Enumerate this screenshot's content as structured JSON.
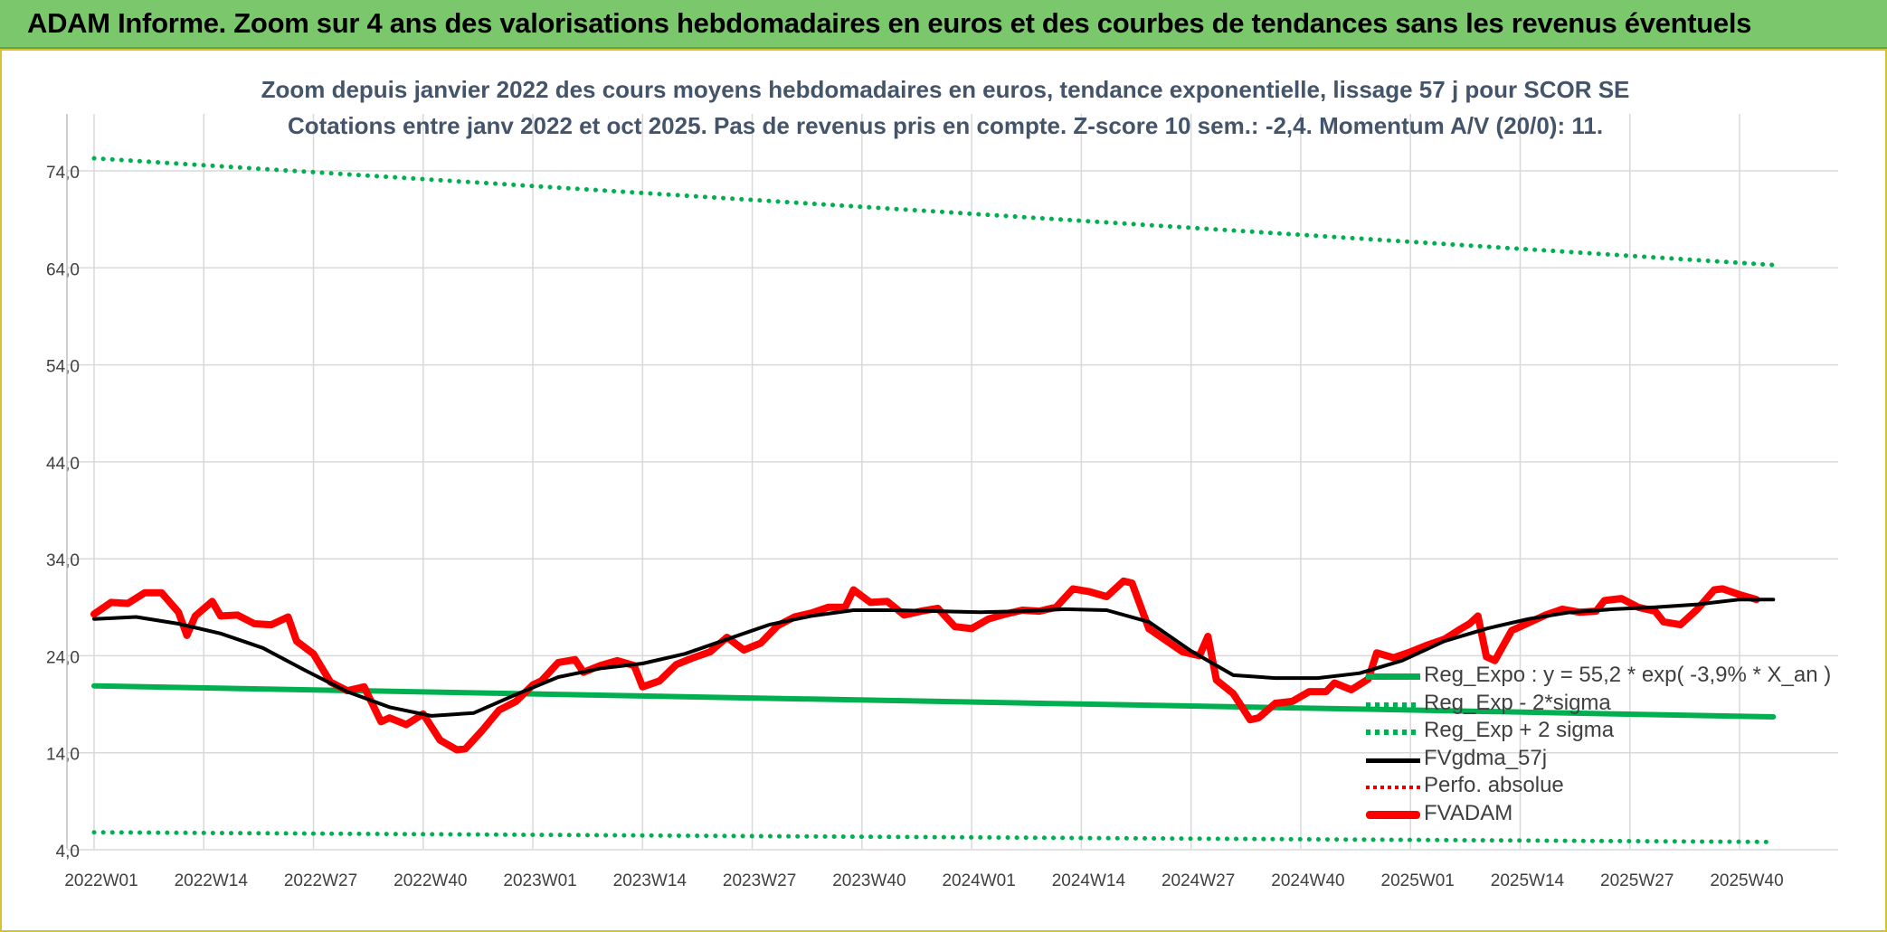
{
  "banner": {
    "title": "ADAM Informe. Zoom sur 4 ans des valorisations hebdomadaires en euros et des courbes de tendances sans les revenus éventuels"
  },
  "colors": {
    "banner_bg": "#7bc86c",
    "green": "#00b050",
    "black": "#000000",
    "red": "#ff0000",
    "dark_red": "#e00000",
    "title_text": "#44546a",
    "grid": "#d9d9d9"
  },
  "chart_data": {
    "type": "line",
    "title": "Zoom depuis janvier 2022 des cours moyens hebdomadaires en euros, tendance exponentielle, lissage 57 j pour SCOR SE",
    "subtitle": "Cotations entre janv 2022 et oct 2025. Pas de revenus pris en compte. Z-score 10 sem.: -2,4. Momentum A/V (20/0): 11.",
    "xlabel": "",
    "ylabel": "",
    "ylim": [
      4,
      74
    ],
    "x_range_weeks": [
      0,
      199
    ],
    "yticks": [
      "74,0",
      "64,0",
      "54,0",
      "44,0",
      "34,0",
      "24,0",
      "14,0",
      "4,0"
    ],
    "ytick_values": [
      74,
      64,
      54,
      44,
      34,
      24,
      14,
      4
    ],
    "xtick_labels": [
      "2022W01",
      "2022W14",
      "2022W27",
      "2022W40",
      "2023W01",
      "2023W14",
      "2023W27",
      "2023W40",
      "2024W01",
      "2024W14",
      "2024W27",
      "2024W40",
      "2025W01",
      "2025W14",
      "2025W27",
      "2025W40"
    ],
    "xtick_weeks": [
      0,
      13,
      26,
      39,
      52,
      65,
      78,
      91,
      104,
      117,
      130,
      143,
      156,
      169,
      182,
      195
    ],
    "grid": "vertical and horizontal",
    "legend_position": "bottom-right",
    "series": [
      {
        "name": "Reg_Expo : y = 55,2 * exp( -3,9% *  X_an )",
        "style": "solid",
        "color": "#00b050",
        "points": [
          [
            0,
            20.9
          ],
          [
            50,
            20.1
          ],
          [
            100,
            19.3
          ],
          [
            150,
            18.5
          ],
          [
            199,
            17.7
          ]
        ]
      },
      {
        "name": "Reg_Exp - 2*sigma",
        "style": "dotted",
        "color": "#00b050",
        "points": [
          [
            0,
            5.8
          ],
          [
            100,
            5.3
          ],
          [
            199,
            4.8
          ]
        ]
      },
      {
        "name": "Reg_Exp + 2 sigma",
        "style": "dotted",
        "color": "#00b050",
        "points": [
          [
            0,
            75.3
          ],
          [
            100,
            69.8
          ],
          [
            199,
            64.3
          ]
        ]
      },
      {
        "name": "FVgdma_57j",
        "style": "solid",
        "color": "#000000",
        "points": [
          [
            0,
            27.8
          ],
          [
            5,
            28.0
          ],
          [
            10,
            27.3
          ],
          [
            15,
            26.3
          ],
          [
            20,
            24.8
          ],
          [
            25,
            22.5
          ],
          [
            30,
            20.3
          ],
          [
            35,
            18.7
          ],
          [
            40,
            17.8
          ],
          [
            45,
            18.1
          ],
          [
            50,
            20.0
          ],
          [
            55,
            21.8
          ],
          [
            60,
            22.7
          ],
          [
            65,
            23.2
          ],
          [
            70,
            24.2
          ],
          [
            75,
            25.7
          ],
          [
            80,
            27.2
          ],
          [
            85,
            28.1
          ],
          [
            90,
            28.7
          ],
          [
            95,
            28.7
          ],
          [
            100,
            28.6
          ],
          [
            105,
            28.5
          ],
          [
            110,
            28.6
          ],
          [
            115,
            28.8
          ],
          [
            120,
            28.7
          ],
          [
            125,
            27.5
          ],
          [
            130,
            24.5
          ],
          [
            135,
            22.0
          ],
          [
            140,
            21.7
          ],
          [
            145,
            21.7
          ],
          [
            150,
            22.2
          ],
          [
            155,
            23.5
          ],
          [
            160,
            25.5
          ],
          [
            165,
            26.8
          ],
          [
            170,
            27.8
          ],
          [
            175,
            28.5
          ],
          [
            180,
            28.8
          ],
          [
            185,
            29.0
          ],
          [
            190,
            29.3
          ],
          [
            195,
            29.8
          ],
          [
            199,
            29.8
          ]
        ]
      },
      {
        "name": "Perfo. absolue",
        "style": "dotted",
        "color": "#e00000",
        "points": []
      },
      {
        "name": "FVADAM",
        "style": "solid-thick",
        "color": "#ff0000",
        "points": [
          [
            0,
            28.3
          ],
          [
            2,
            29.5
          ],
          [
            4,
            29.4
          ],
          [
            6,
            30.5
          ],
          [
            8,
            30.5
          ],
          [
            10,
            28.5
          ],
          [
            11,
            26.1
          ],
          [
            12,
            28.1
          ],
          [
            14,
            29.6
          ],
          [
            15,
            28.1
          ],
          [
            17,
            28.2
          ],
          [
            19,
            27.3
          ],
          [
            21,
            27.2
          ],
          [
            23,
            28.0
          ],
          [
            24,
            25.5
          ],
          [
            26,
            24.2
          ],
          [
            28,
            21.3
          ],
          [
            30,
            20.4
          ],
          [
            32,
            20.8
          ],
          [
            34,
            17.2
          ],
          [
            35,
            17.6
          ],
          [
            37,
            16.9
          ],
          [
            39,
            18.0
          ],
          [
            41,
            15.3
          ],
          [
            43,
            14.3
          ],
          [
            44,
            14.4
          ],
          [
            46,
            16.3
          ],
          [
            48,
            18.4
          ],
          [
            50,
            19.3
          ],
          [
            52,
            21.0
          ],
          [
            53,
            21.4
          ],
          [
            55,
            23.3
          ],
          [
            57,
            23.6
          ],
          [
            58,
            22.3
          ],
          [
            60,
            23.0
          ],
          [
            62,
            23.5
          ],
          [
            64,
            23.0
          ],
          [
            65,
            20.8
          ],
          [
            67,
            21.4
          ],
          [
            69,
            23.1
          ],
          [
            71,
            23.8
          ],
          [
            73,
            24.4
          ],
          [
            75,
            25.9
          ],
          [
            77,
            24.6
          ],
          [
            79,
            25.3
          ],
          [
            81,
            27.1
          ],
          [
            83,
            28.0
          ],
          [
            85,
            28.4
          ],
          [
            87,
            29.0
          ],
          [
            89,
            29.0
          ],
          [
            90,
            30.8
          ],
          [
            92,
            29.5
          ],
          [
            94,
            29.6
          ],
          [
            96,
            28.2
          ],
          [
            98,
            28.6
          ],
          [
            100,
            28.9
          ],
          [
            102,
            27.0
          ],
          [
            104,
            26.8
          ],
          [
            106,
            27.8
          ],
          [
            108,
            28.3
          ],
          [
            110,
            28.7
          ],
          [
            112,
            28.6
          ],
          [
            114,
            29.0
          ],
          [
            116,
            30.9
          ],
          [
            118,
            30.6
          ],
          [
            120,
            30.1
          ],
          [
            122,
            31.7
          ],
          [
            123,
            31.5
          ],
          [
            125,
            26.8
          ],
          [
            127,
            25.6
          ],
          [
            129,
            24.4
          ],
          [
            131,
            24.0
          ],
          [
            132,
            26.0
          ],
          [
            133,
            21.5
          ],
          [
            135,
            20.1
          ],
          [
            137,
            17.4
          ],
          [
            138,
            17.6
          ],
          [
            140,
            19.1
          ],
          [
            142,
            19.3
          ],
          [
            144,
            20.3
          ],
          [
            146,
            20.3
          ],
          [
            147,
            21.2
          ],
          [
            149,
            20.5
          ],
          [
            151,
            21.6
          ],
          [
            152,
            24.3
          ],
          [
            154,
            23.8
          ],
          [
            156,
            24.4
          ],
          [
            158,
            25.1
          ],
          [
            160,
            25.7
          ],
          [
            162,
            26.8
          ],
          [
            163,
            27.3
          ],
          [
            164,
            28.1
          ],
          [
            165,
            23.9
          ],
          [
            166,
            23.5
          ],
          [
            168,
            26.6
          ],
          [
            170,
            27.4
          ],
          [
            172,
            28.2
          ],
          [
            174,
            28.8
          ],
          [
            176,
            28.5
          ],
          [
            178,
            28.6
          ],
          [
            179,
            29.7
          ],
          [
            181,
            29.9
          ],
          [
            183,
            29.0
          ],
          [
            185,
            28.6
          ],
          [
            186,
            27.5
          ],
          [
            188,
            27.2
          ],
          [
            190,
            28.8
          ],
          [
            192,
            30.8
          ],
          [
            193,
            30.9
          ],
          [
            195,
            30.3
          ],
          [
            197,
            29.8
          ]
        ]
      }
    ]
  }
}
